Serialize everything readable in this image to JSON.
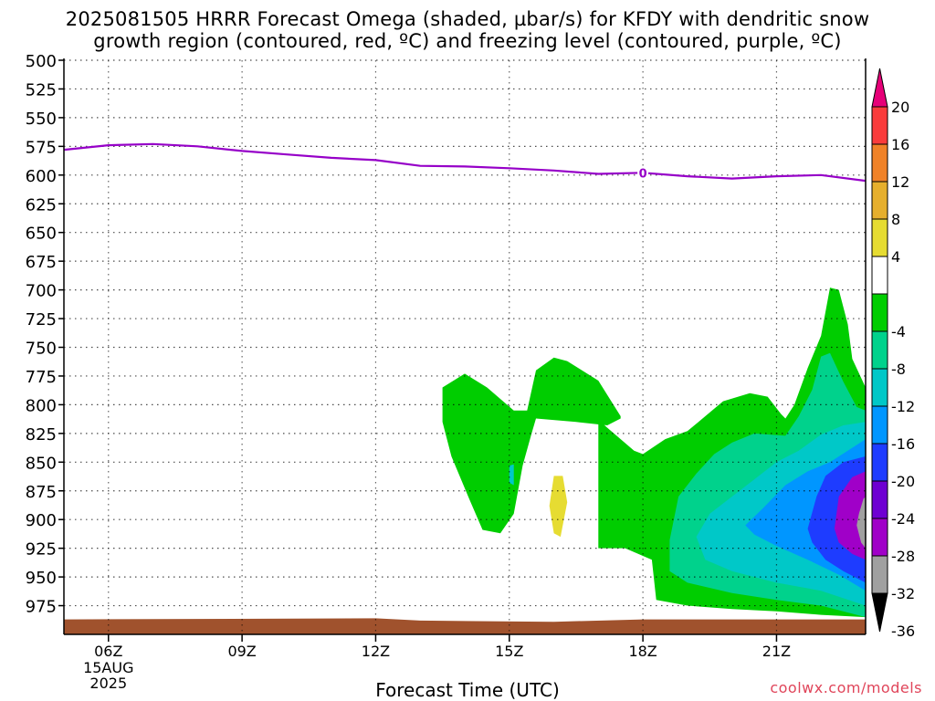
{
  "title_line1": "2025081505 HRRR Forecast Omega (shaded, µbar/s) for KFDY with dendritic snow",
  "title_line2": "growth region (contoured, red, ºC) and freezing level (contoured, purple, ºC)",
  "x_axis_label": "Forecast Time (UTC)",
  "credit": "coolwx.com/models",
  "chart_data": {
    "type": "heatmap",
    "y_ticks": [
      500,
      525,
      550,
      575,
      600,
      625,
      650,
      675,
      700,
      725,
      750,
      775,
      800,
      825,
      850,
      875,
      900,
      925,
      950,
      975
    ],
    "x_ticks": [
      {
        "hour": 6,
        "label": "06Z",
        "sub": [
          "15AUG",
          "2025"
        ]
      },
      {
        "hour": 9,
        "label": "09Z"
      },
      {
        "hour": 12,
        "label": "12Z"
      },
      {
        "hour": 15,
        "label": "15Z"
      },
      {
        "hour": 18,
        "label": "18Z"
      },
      {
        "hour": 21,
        "label": "21Z"
      }
    ],
    "x_range": [
      5,
      23
    ],
    "grid": true,
    "colorbar": {
      "top_labels": [
        "20",
        "16",
        "12",
        "8",
        "4"
      ],
      "bottom_labels": [
        "-4",
        "-8",
        "-12",
        "-16",
        "-20",
        "-24",
        "-28",
        "-32",
        "-36"
      ],
      "colors": [
        "#000000",
        "#a0a0a0",
        "#a000c8",
        "#6e00d2",
        "#1e3cff",
        "#0096ff",
        "#00c8c8",
        "#00d28c",
        "#00cd00",
        "#ffffff",
        "#e6dc32",
        "#e6af2d",
        "#f08228",
        "#fa3c3c",
        "#e60078"
      ]
    },
    "freezing_level": {
      "color": "#9600c8",
      "label": "0",
      "points": [
        [
          5,
          578
        ],
        [
          6,
          574
        ],
        [
          7,
          573
        ],
        [
          8,
          575
        ],
        [
          9,
          579
        ],
        [
          10,
          582
        ],
        [
          11,
          585
        ],
        [
          12,
          587
        ],
        [
          13,
          592
        ],
        [
          14,
          592.5
        ],
        [
          15,
          594
        ],
        [
          16,
          596
        ],
        [
          17,
          599
        ],
        [
          18,
          598
        ],
        [
          19,
          601
        ],
        [
          20,
          603
        ],
        [
          21,
          601
        ],
        [
          22,
          600
        ],
        [
          23,
          605
        ]
      ]
    },
    "omega_regions": [
      {
        "color": "#00cd00",
        "points": [
          [
            13.5,
            785
          ],
          [
            14.0,
            773
          ],
          [
            14.5,
            785
          ],
          [
            15.1,
            805
          ],
          [
            15.4,
            805
          ],
          [
            15.6,
            770
          ],
          [
            16.0,
            759
          ],
          [
            16.3,
            762
          ],
          [
            17.0,
            779
          ],
          [
            17.5,
            810
          ],
          [
            17.5,
            812
          ],
          [
            17.2,
            818
          ],
          [
            16.5,
            815
          ],
          [
            15.6,
            812
          ],
          [
            15.5,
            825
          ],
          [
            15.3,
            853
          ],
          [
            15.1,
            895
          ],
          [
            14.8,
            912
          ],
          [
            14.4,
            909
          ],
          [
            14.1,
            882
          ],
          [
            13.7,
            845
          ],
          [
            13.5,
            815
          ]
        ]
      },
      {
        "color": "#00cd00",
        "points": [
          [
            17.0,
            813
          ],
          [
            17.2,
            820
          ],
          [
            17.8,
            840
          ],
          [
            18.0,
            843
          ],
          [
            18.5,
            830
          ],
          [
            19.0,
            823
          ],
          [
            19.4,
            810
          ],
          [
            19.8,
            797
          ],
          [
            20.4,
            790
          ],
          [
            20.8,
            793
          ],
          [
            21.1,
            808
          ],
          [
            21.2,
            812
          ],
          [
            21.4,
            800
          ],
          [
            21.7,
            768
          ],
          [
            22.0,
            740
          ],
          [
            22.2,
            698
          ],
          [
            22.4,
            700
          ],
          [
            22.6,
            730
          ],
          [
            22.7,
            760
          ],
          [
            23.0,
            785
          ],
          [
            23.0,
            985
          ],
          [
            22.0,
            983
          ],
          [
            21.0,
            980
          ],
          [
            20.0,
            978
          ],
          [
            19.0,
            975
          ],
          [
            18.3,
            970
          ],
          [
            18.2,
            935
          ],
          [
            17.6,
            925
          ],
          [
            17.0,
            925
          ]
        ]
      },
      {
        "color": "#00d28c",
        "points": [
          [
            18.6,
            918
          ],
          [
            18.8,
            880
          ],
          [
            19.2,
            860
          ],
          [
            19.6,
            843
          ],
          [
            20.0,
            833
          ],
          [
            20.5,
            825
          ],
          [
            21.2,
            827
          ],
          [
            21.5,
            810
          ],
          [
            21.8,
            787
          ],
          [
            22.0,
            758
          ],
          [
            22.2,
            755
          ],
          [
            22.5,
            780
          ],
          [
            22.8,
            802
          ],
          [
            23.0,
            805
          ],
          [
            23.0,
            985
          ],
          [
            22.0,
            975
          ],
          [
            21.0,
            970
          ],
          [
            20.0,
            964
          ],
          [
            19.0,
            955
          ],
          [
            18.6,
            945
          ]
        ]
      },
      {
        "color": "#00c8c8",
        "points": [
          [
            19.2,
            915
          ],
          [
            19.5,
            895
          ],
          [
            20.0,
            880
          ],
          [
            20.5,
            865
          ],
          [
            21.0,
            850
          ],
          [
            21.5,
            840
          ],
          [
            22.0,
            826
          ],
          [
            22.5,
            818
          ],
          [
            23.0,
            815
          ],
          [
            23.0,
            975
          ],
          [
            22.0,
            962
          ],
          [
            21.0,
            955
          ],
          [
            20.0,
            945
          ],
          [
            19.4,
            935
          ]
        ]
      },
      {
        "color": "#00c8c8",
        "points": [
          [
            15.0,
            853
          ],
          [
            15.1,
            852
          ],
          [
            15.1,
            870
          ],
          [
            15.0,
            868
          ]
        ]
      },
      {
        "color": "#0096ff",
        "points": [
          [
            20.3,
            905
          ],
          [
            20.7,
            890
          ],
          [
            21.2,
            870
          ],
          [
            21.7,
            858
          ],
          [
            22.2,
            850
          ],
          [
            22.6,
            840
          ],
          [
            23.0,
            830
          ],
          [
            23.0,
            962
          ],
          [
            22.4,
            948
          ],
          [
            21.7,
            935
          ],
          [
            21.0,
            923
          ],
          [
            20.5,
            913
          ]
        ]
      },
      {
        "color": "#1e3cff",
        "points": [
          [
            21.7,
            908
          ],
          [
            21.9,
            880
          ],
          [
            22.1,
            862
          ],
          [
            22.5,
            850
          ],
          [
            23.0,
            845
          ],
          [
            23.0,
            955
          ],
          [
            22.5,
            945
          ],
          [
            22.1,
            935
          ],
          [
            21.8,
            920
          ]
        ]
      },
      {
        "color": "#a000c8",
        "points": [
          [
            22.3,
            908
          ],
          [
            22.4,
            880
          ],
          [
            22.7,
            863
          ],
          [
            23.0,
            858
          ],
          [
            23.0,
            935
          ],
          [
            22.7,
            930
          ],
          [
            22.4,
            920
          ]
        ]
      },
      {
        "color": "#a0a0a0",
        "points": [
          [
            22.8,
            905
          ],
          [
            22.85,
            895
          ],
          [
            22.95,
            882
          ],
          [
            23.0,
            880
          ],
          [
            23.0,
            925
          ],
          [
            22.9,
            920
          ]
        ]
      },
      {
        "color": "#e6dc32",
        "points": [
          [
            16.0,
            862
          ],
          [
            16.2,
            862
          ],
          [
            16.3,
            885
          ],
          [
            16.15,
            915
          ],
          [
            16.0,
            912
          ],
          [
            15.9,
            888
          ]
        ]
      }
    ],
    "terrain": {
      "color": "#a0522d",
      "points": [
        [
          5,
          987
        ],
        [
          12,
          986
        ],
        [
          13,
          988
        ],
        [
          16,
          989
        ],
        [
          18,
          987
        ],
        [
          23,
          987
        ],
        [
          23,
          1000
        ],
        [
          5,
          1000
        ]
      ]
    }
  }
}
